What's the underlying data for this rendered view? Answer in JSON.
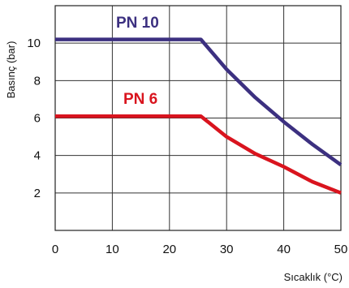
{
  "chart_data": {
    "type": "line",
    "xlabel": "Sıcaklık (°C)",
    "ylabel": "Basınç (bar)",
    "xlim": [
      0,
      50
    ],
    "ylim": [
      0,
      12
    ],
    "xticks": [
      0,
      10,
      20,
      30,
      40,
      50
    ],
    "yticks": [
      2,
      4,
      6,
      8,
      10
    ],
    "x_tick_labels": [
      "0",
      "10",
      "20",
      "30",
      "40",
      "50"
    ],
    "y_tick_labels": [
      "2",
      "4",
      "6",
      "8",
      "10"
    ],
    "grid": true,
    "series": [
      {
        "name": "PN 10",
        "color": "#3c3080",
        "points": [
          [
            0,
            10.2
          ],
          [
            25.5,
            10.2
          ],
          [
            30,
            8.6
          ],
          [
            35,
            7.1
          ],
          [
            40,
            5.8
          ],
          [
            45,
            4.6
          ],
          [
            50,
            3.5
          ]
        ]
      },
      {
        "name": "PN 6",
        "color": "#d9141e",
        "points": [
          [
            0,
            6.1
          ],
          [
            25.5,
            6.1
          ],
          [
            30,
            5.0
          ],
          [
            35,
            4.1
          ],
          [
            40,
            3.4
          ],
          [
            45,
            2.6
          ],
          [
            50,
            2.0
          ]
        ]
      }
    ]
  }
}
